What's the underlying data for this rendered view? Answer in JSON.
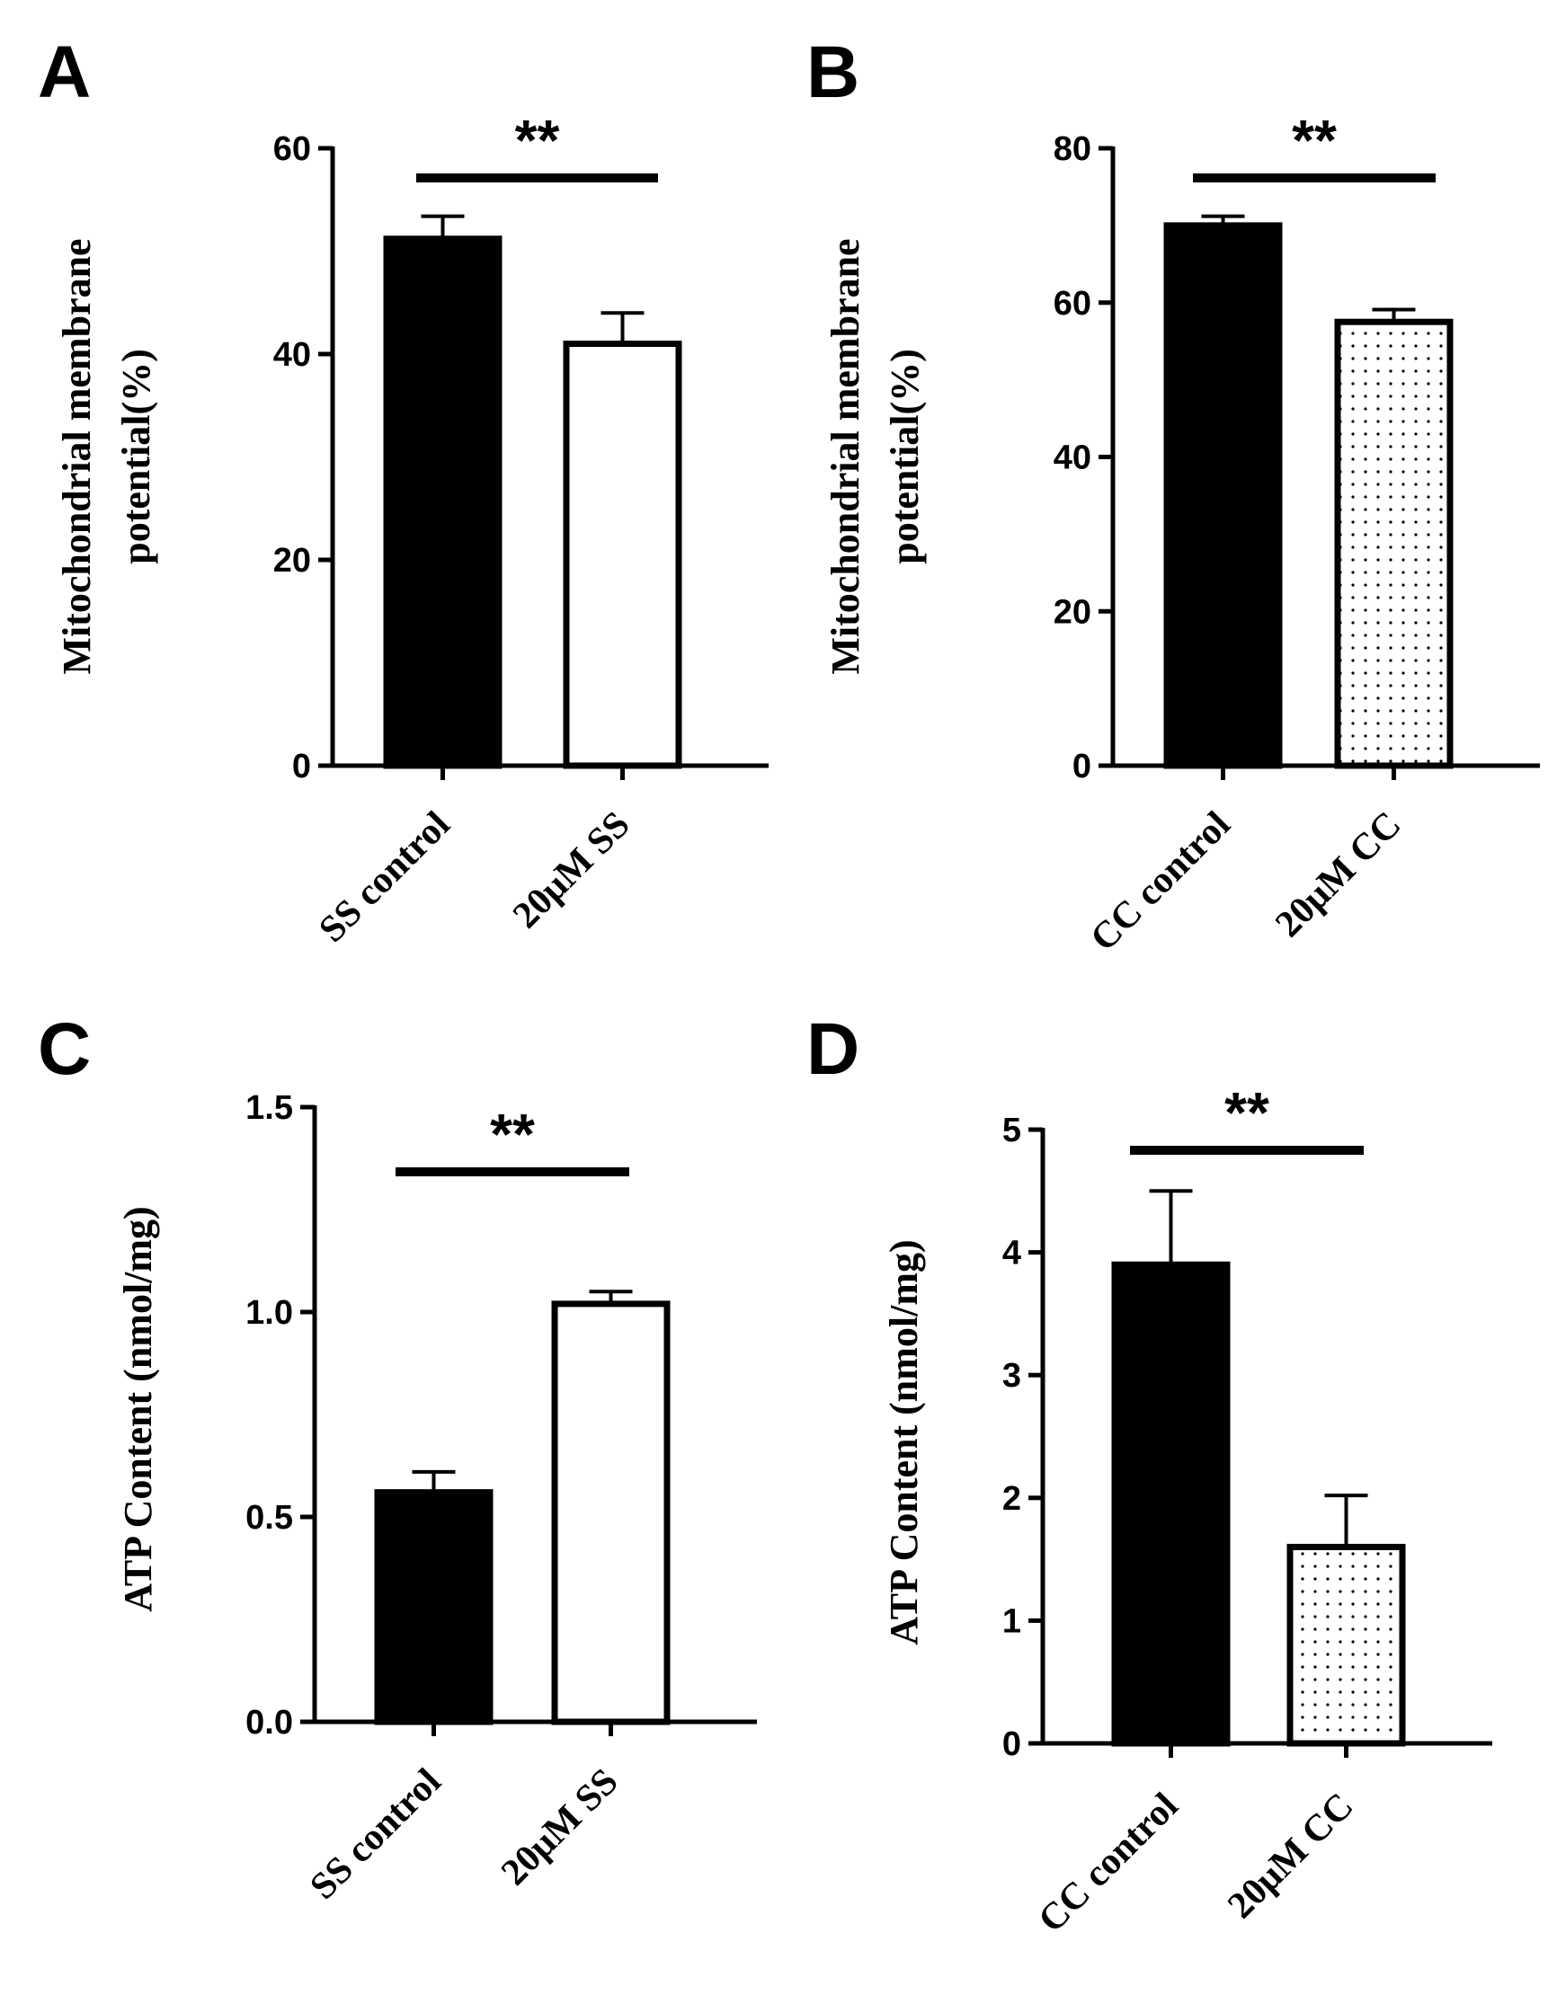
{
  "chart_data": [
    {
      "panel": "A",
      "type": "bar",
      "ylabel_lines": [
        "Mitochondrial membrane",
        "potential(%)"
      ],
      "ylim": [
        0,
        60
      ],
      "yticks": [
        0,
        20,
        40,
        60
      ],
      "ytick_labels": [
        "0",
        "20",
        "40",
        "60"
      ],
      "categories": [
        "SS control",
        "20μM SS"
      ],
      "values": [
        51.2,
        41.0
      ],
      "errors": [
        2.2,
        3.0
      ],
      "fills": [
        "solid",
        "white"
      ],
      "significance": "**"
    },
    {
      "panel": "B",
      "type": "bar",
      "ylabel_lines": [
        "Mitochondrial membrane",
        "potential(%)"
      ],
      "ylim": [
        0,
        80
      ],
      "yticks": [
        0,
        20,
        40,
        60,
        80
      ],
      "ytick_labels": [
        "0",
        "20",
        "40",
        "60",
        "80"
      ],
      "categories": [
        "CC control",
        "20μM CC"
      ],
      "values": [
        70.0,
        57.5
      ],
      "errors": [
        1.2,
        1.6
      ],
      "fills": [
        "solid",
        "dotted"
      ],
      "significance": "**"
    },
    {
      "panel": "C",
      "type": "bar",
      "ylabel_lines": [
        "ATP Content (nmol/mg)"
      ],
      "ylim": [
        0,
        1.5
      ],
      "yticks": [
        0,
        0.5,
        1.0,
        1.5
      ],
      "ytick_labels": [
        "0.0",
        "0.5",
        "1.0",
        "1.5"
      ],
      "categories": [
        "SS control",
        "20μM SS"
      ],
      "values": [
        0.56,
        1.02
      ],
      "errors": [
        0.05,
        0.03
      ],
      "fills": [
        "solid",
        "white"
      ],
      "significance": "**"
    },
    {
      "panel": "D",
      "type": "bar",
      "ylabel_lines": [
        "ATP Content (nmol/mg)"
      ],
      "ylim": [
        0,
        5
      ],
      "yticks": [
        0,
        1,
        2,
        3,
        4,
        5
      ],
      "ytick_labels": [
        "0",
        "1",
        "2",
        "3",
        "4",
        "5"
      ],
      "categories": [
        "CC control",
        "20μM CC"
      ],
      "values": [
        3.9,
        1.6
      ],
      "errors": [
        0.6,
        0.42
      ],
      "fills": [
        "solid",
        "dotted"
      ],
      "significance": "**"
    }
  ]
}
